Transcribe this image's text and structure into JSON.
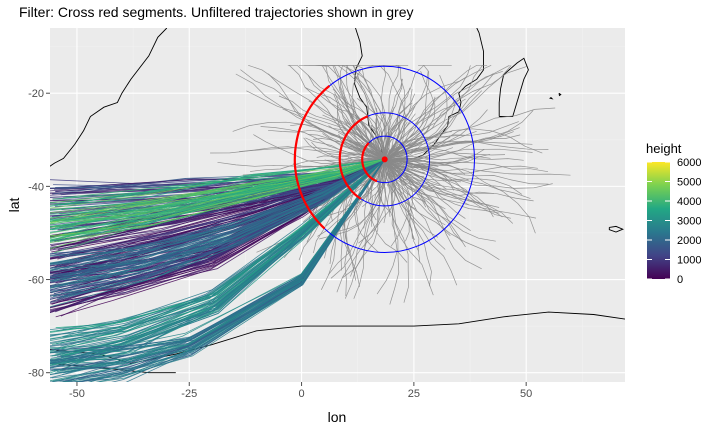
{
  "title": "Filter: Cross red segments. Unfiltered trajectories shown in grey",
  "colors": {
    "panel_bg": "#ebebeb",
    "grid_major": "#ffffff",
    "grid_minor": "#f2f2f2",
    "unfiltered": "#8a8a8a",
    "filter_segment": "#ff0000",
    "circles": "#0000ff",
    "coastline": "#000000",
    "tick": "#4d4d4d",
    "viridis": [
      "#440154",
      "#414487",
      "#2a788e",
      "#22a884",
      "#7ad151",
      "#fde725"
    ]
  },
  "chart_data": {
    "type": "trajectory-map",
    "xlabel": "lon",
    "ylabel": "lat",
    "xlim": [
      -56,
      72
    ],
    "ylim": [
      -82,
      -6
    ],
    "x_ticks": [
      -50,
      -25,
      0,
      25,
      50
    ],
    "y_ticks": [
      -20,
      -40,
      -60,
      -80
    ],
    "x_tick_labels": [
      "-50",
      "-25",
      "0",
      "25",
      "50"
    ],
    "y_tick_labels": [
      "-20",
      "-40",
      "-60",
      "-80"
    ],
    "grid": true,
    "legend": {
      "title": "height",
      "position": "right",
      "range": [
        0,
        6000
      ],
      "ticks": [
        0,
        1000,
        2000,
        3000,
        4000,
        5000,
        6000
      ],
      "tick_labels": [
        "0",
        "1000",
        "2000",
        "3000",
        "4000",
        "5000",
        "6000"
      ]
    },
    "source_point": {
      "lon": 18.5,
      "lat": -34.2
    },
    "circles": [
      {
        "center": [
          18.5,
          -34.2
        ],
        "radius_deg": 5
      },
      {
        "center": [
          18.5,
          -34.2
        ],
        "radius_deg": 10
      },
      {
        "center": [
          18.5,
          -34.2
        ],
        "radius_deg": 20
      }
    ],
    "filter_segments": [
      {
        "type": "arc",
        "center": [
          18.5,
          -34.2
        ],
        "radius_deg": 5,
        "from_deg": 250,
        "to_deg": 135
      },
      {
        "type": "arc",
        "center": [
          18.5,
          -34.2
        ],
        "radius_deg": 10,
        "from_deg": 238,
        "to_deg": 112
      },
      {
        "type": "arc",
        "center": [
          18.5,
          -34.2
        ],
        "radius_deg": 20,
        "from_deg": 228,
        "to_deg": 128
      }
    ],
    "trajectory_bundles": [
      {
        "lon": [
          18.5,
          5,
          -10,
          -30,
          -56
        ],
        "lat": [
          -34.2,
          -40,
          -45,
          -50,
          -55
        ],
        "height": 500
      },
      {
        "lon": [
          18.5,
          0,
          -20,
          -40,
          -56
        ],
        "lat": [
          -34.2,
          -45,
          -55,
          -60,
          -63
        ],
        "height": 800
      },
      {
        "lon": [
          18.5,
          10,
          -5,
          -25,
          -56
        ],
        "lat": [
          -34.2,
          -38,
          -40,
          -42,
          -44
        ],
        "height": 1200
      },
      {
        "lon": [
          18.5,
          5,
          -15,
          -35,
          -56
        ],
        "lat": [
          -34.2,
          -42,
          -50,
          -56,
          -60
        ],
        "height": 2200
      },
      {
        "lon": [
          18.5,
          0,
          -20,
          -40,
          -56
        ],
        "lat": [
          -34.2,
          -50,
          -65,
          -72,
          -75
        ],
        "height": 3000
      },
      {
        "lon": [
          18.5,
          8,
          -10,
          -35,
          -56
        ],
        "lat": [
          -34.2,
          -37,
          -40,
          -45,
          -48
        ],
        "height": 4200
      },
      {
        "lon": [
          18.5,
          0,
          -25,
          -40,
          -56
        ],
        "lat": [
          -34.2,
          -60,
          -74,
          -78,
          -80
        ],
        "height": 2500
      }
    ]
  }
}
